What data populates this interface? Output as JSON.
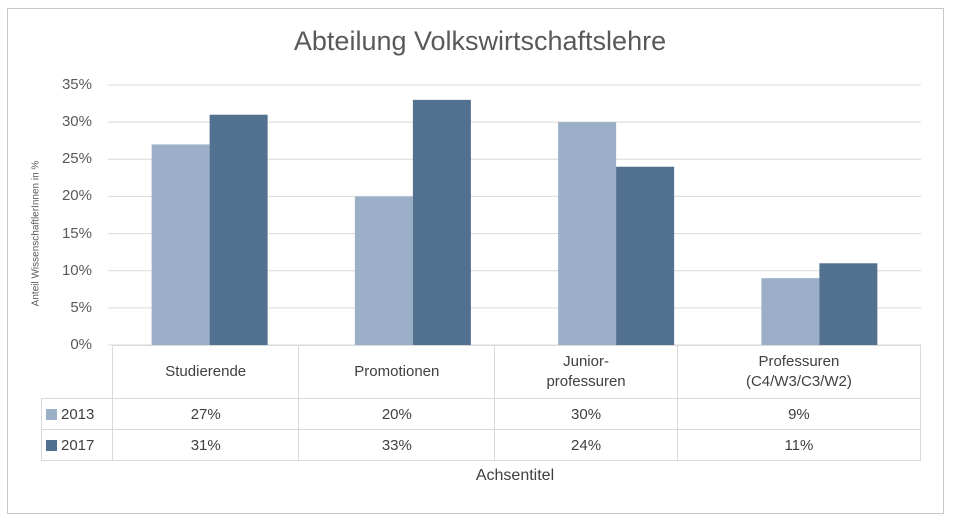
{
  "chart_data": {
    "type": "bar",
    "title": "Abteilung Volkswirtschaftslehre",
    "ylabel": "Anteil WissenschaftlerInnen in %",
    "xlabel": "Achsentitel",
    "ylim": [
      0,
      35
    ],
    "yticks": [
      "0%",
      "5%",
      "10%",
      "15%",
      "20%",
      "25%",
      "30%",
      "35%"
    ],
    "categories": [
      "Studierende",
      "Promotionen",
      "Junior-\nprofessuren",
      "Professuren\n(C4/W3/C3/W2)"
    ],
    "series": [
      {
        "name": "2013",
        "values": [
          27,
          20,
          30,
          9
        ],
        "labels": [
          "27%",
          "20%",
          "30%",
          "9%"
        ],
        "color": "#9bb0c8"
      },
      {
        "name": "2017",
        "values": [
          31,
          33,
          24,
          11
        ],
        "labels": [
          "31%",
          "33%",
          "24%",
          "11%"
        ],
        "color": "#52708f"
      }
    ],
    "grid": true,
    "legend": "data-table"
  }
}
